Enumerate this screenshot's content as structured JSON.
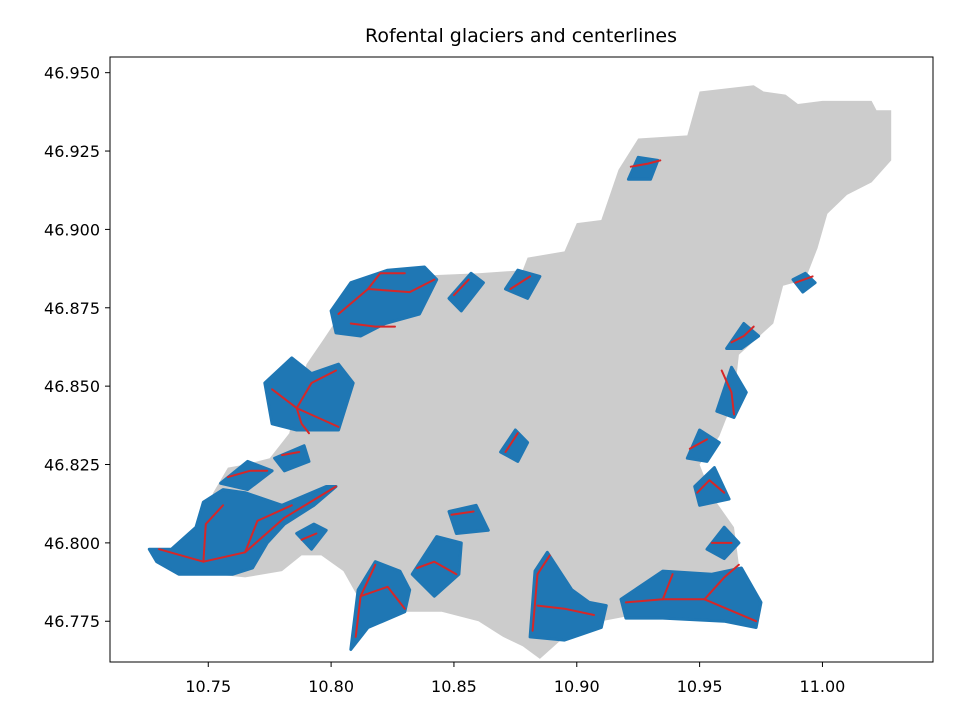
{
  "title": "Rofental glaciers and centerlines",
  "colors": {
    "catchment": "#cccccc",
    "glacier": "#1f77b4",
    "centerline": "#d62728",
    "axes": "#000000",
    "background": "#ffffff"
  },
  "axes": {
    "xlim": [
      10.71,
      11.045
    ],
    "ylim": [
      46.762,
      46.955
    ],
    "x_ticks": [
      10.75,
      10.8,
      10.85,
      10.9,
      10.95,
      11.0
    ],
    "x_tick_labels": [
      "10.75",
      "10.80",
      "10.85",
      "10.90",
      "10.95",
      "11.00"
    ],
    "y_ticks": [
      46.775,
      46.8,
      46.825,
      46.85,
      46.875,
      46.9,
      46.925,
      46.95
    ],
    "y_tick_labels": [
      "46.775",
      "46.800",
      "46.825",
      "46.850",
      "46.875",
      "46.900",
      "46.925",
      "46.950"
    ]
  },
  "map_layers": {
    "catchment_outline": [
      [
        10.95,
        46.944
      ],
      [
        10.972,
        46.946
      ],
      [
        10.976,
        46.944
      ],
      [
        10.985,
        46.943
      ],
      [
        10.99,
        46.94
      ],
      [
        11.0,
        46.941
      ],
      [
        11.02,
        46.941
      ],
      [
        11.022,
        46.938
      ],
      [
        11.028,
        46.938
      ],
      [
        11.028,
        46.922
      ],
      [
        11.02,
        46.915
      ],
      [
        11.01,
        46.911
      ],
      [
        11.002,
        46.905
      ],
      [
        10.998,
        46.894
      ],
      [
        10.993,
        46.884
      ],
      [
        10.984,
        46.882
      ],
      [
        10.98,
        46.87
      ],
      [
        10.966,
        46.86
      ],
      [
        10.964,
        46.846
      ],
      [
        10.958,
        46.834
      ],
      [
        10.95,
        46.825
      ],
      [
        10.955,
        46.815
      ],
      [
        10.964,
        46.805
      ],
      [
        10.966,
        46.793
      ],
      [
        10.955,
        46.784
      ],
      [
        10.945,
        46.782
      ],
      [
        10.93,
        46.778
      ],
      [
        10.91,
        46.775
      ],
      [
        10.895,
        46.77
      ],
      [
        10.885,
        46.763
      ],
      [
        10.878,
        46.767
      ],
      [
        10.87,
        46.77
      ],
      [
        10.86,
        46.775
      ],
      [
        10.845,
        46.778
      ],
      [
        10.83,
        46.778
      ],
      [
        10.818,
        46.775
      ],
      [
        10.81,
        46.784
      ],
      [
        10.805,
        46.791
      ],
      [
        10.796,
        46.796
      ],
      [
        10.788,
        46.796
      ],
      [
        10.78,
        46.791
      ],
      [
        10.765,
        46.789
      ],
      [
        10.752,
        46.79
      ],
      [
        10.748,
        46.797
      ],
      [
        10.748,
        46.806
      ],
      [
        10.752,
        46.816
      ],
      [
        10.758,
        46.824
      ],
      [
        10.765,
        46.825
      ],
      [
        10.775,
        46.827
      ],
      [
        10.783,
        46.835
      ],
      [
        10.785,
        46.843
      ],
      [
        10.79,
        46.857
      ],
      [
        10.797,
        46.865
      ],
      [
        10.808,
        46.878
      ],
      [
        10.83,
        46.885
      ],
      [
        10.86,
        46.886
      ],
      [
        10.878,
        46.887
      ],
      [
        10.88,
        46.891
      ],
      [
        10.895,
        46.893
      ],
      [
        10.9,
        46.902
      ],
      [
        10.91,
        46.903
      ],
      [
        10.917,
        46.919
      ],
      [
        10.925,
        46.929
      ],
      [
        10.945,
        46.93
      ],
      [
        10.95,
        46.944
      ]
    ],
    "glaciers": [
      [
        [
          10.726,
          46.798
        ],
        [
          10.735,
          46.798
        ],
        [
          10.745,
          46.805
        ],
        [
          10.748,
          46.813
        ],
        [
          10.756,
          46.817
        ],
        [
          10.765,
          46.816
        ],
        [
          10.78,
          46.812
        ],
        [
          10.798,
          46.818
        ],
        [
          10.802,
          46.818
        ],
        [
          10.793,
          46.812
        ],
        [
          10.781,
          46.806
        ],
        [
          10.774,
          46.8
        ],
        [
          10.768,
          46.792
        ],
        [
          10.76,
          46.79
        ],
        [
          10.748,
          46.79
        ],
        [
          10.738,
          46.79
        ],
        [
          10.729,
          46.794
        ]
      ],
      [
        [
          10.786,
          46.803
        ],
        [
          10.793,
          46.806
        ],
        [
          10.798,
          46.804
        ],
        [
          10.792,
          46.798
        ]
      ],
      [
        [
          10.755,
          46.819
        ],
        [
          10.766,
          46.826
        ],
        [
          10.776,
          46.823
        ],
        [
          10.766,
          46.817
        ]
      ],
      [
        [
          10.808,
          46.766
        ],
        [
          10.811,
          46.785
        ],
        [
          10.818,
          46.794
        ],
        [
          10.828,
          46.791
        ],
        [
          10.832,
          46.785
        ],
        [
          10.83,
          46.778
        ],
        [
          10.815,
          46.773
        ]
      ],
      [
        [
          10.833,
          46.79
        ],
        [
          10.843,
          46.802
        ],
        [
          10.853,
          46.8
        ],
        [
          10.852,
          46.79
        ],
        [
          10.842,
          46.783
        ]
      ],
      [
        [
          10.848,
          46.81
        ],
        [
          10.859,
          46.812
        ],
        [
          10.864,
          46.804
        ],
        [
          10.851,
          46.803
        ]
      ],
      [
        [
          10.881,
          46.77
        ],
        [
          10.883,
          46.791
        ],
        [
          10.888,
          46.797
        ],
        [
          10.898,
          46.785
        ],
        [
          10.905,
          46.781
        ],
        [
          10.912,
          46.78
        ],
        [
          10.91,
          46.773
        ],
        [
          10.895,
          46.769
        ]
      ],
      [
        [
          10.918,
          46.782
        ],
        [
          10.935,
          46.791
        ],
        [
          10.955,
          46.79
        ],
        [
          10.967,
          46.792
        ],
        [
          10.975,
          46.781
        ],
        [
          10.973,
          46.773
        ],
        [
          10.96,
          46.775
        ],
        [
          10.935,
          46.776
        ],
        [
          10.92,
          46.776
        ]
      ],
      [
        [
          10.773,
          46.851
        ],
        [
          10.776,
          46.838
        ],
        [
          10.786,
          46.836
        ],
        [
          10.803,
          46.836
        ],
        [
          10.809,
          46.851
        ],
        [
          10.803,
          46.857
        ],
        [
          10.792,
          46.854
        ],
        [
          10.784,
          46.859
        ]
      ],
      [
        [
          10.777,
          46.827
        ],
        [
          10.789,
          46.831
        ],
        [
          10.791,
          46.826
        ],
        [
          10.781,
          46.823
        ]
      ],
      [
        [
          10.8,
          46.874
        ],
        [
          10.808,
          46.883
        ],
        [
          10.823,
          46.887
        ],
        [
          10.838,
          46.888
        ],
        [
          10.843,
          46.884
        ],
        [
          10.836,
          46.873
        ],
        [
          10.822,
          46.87
        ],
        [
          10.812,
          46.866
        ],
        [
          10.802,
          46.867
        ]
      ],
      [
        [
          10.848,
          46.878
        ],
        [
          10.857,
          46.886
        ],
        [
          10.862,
          46.883
        ],
        [
          10.853,
          46.874
        ]
      ],
      [
        [
          10.871,
          46.881
        ],
        [
          10.876,
          46.887
        ],
        [
          10.885,
          46.885
        ],
        [
          10.88,
          46.878
        ]
      ],
      [
        [
          10.869,
          46.829
        ],
        [
          10.875,
          46.836
        ],
        [
          10.88,
          46.832
        ],
        [
          10.876,
          46.826
        ]
      ],
      [
        [
          10.921,
          46.916
        ],
        [
          10.925,
          46.923
        ],
        [
          10.933,
          46.922
        ],
        [
          10.93,
          46.916
        ]
      ],
      [
        [
          10.961,
          46.862
        ],
        [
          10.968,
          46.87
        ],
        [
          10.974,
          46.866
        ],
        [
          10.967,
          46.862
        ]
      ],
      [
        [
          10.957,
          46.842
        ],
        [
          10.963,
          46.856
        ],
        [
          10.969,
          46.848
        ],
        [
          10.964,
          46.84
        ]
      ],
      [
        [
          10.948,
          46.818
        ],
        [
          10.956,
          46.824
        ],
        [
          10.962,
          46.814
        ],
        [
          10.95,
          46.812
        ]
      ],
      [
        [
          10.953,
          46.798
        ],
        [
          10.96,
          46.805
        ],
        [
          10.966,
          46.8
        ],
        [
          10.96,
          46.795
        ]
      ],
      [
        [
          10.945,
          46.827
        ],
        [
          10.95,
          46.836
        ],
        [
          10.958,
          46.832
        ],
        [
          10.953,
          46.826
        ]
      ],
      [
        [
          10.988,
          46.884
        ],
        [
          10.993,
          46.886
        ],
        [
          10.997,
          46.883
        ],
        [
          10.992,
          46.88
        ]
      ]
    ],
    "centerlines": [
      [
        [
          10.73,
          46.798
        ],
        [
          10.748,
          46.794
        ],
        [
          10.765,
          46.797
        ],
        [
          10.781,
          46.808
        ],
        [
          10.802,
          46.818
        ]
      ],
      [
        [
          10.748,
          46.794
        ],
        [
          10.749,
          46.806
        ],
        [
          10.756,
          46.812
        ]
      ],
      [
        [
          10.765,
          46.797
        ],
        [
          10.77,
          46.807
        ],
        [
          10.784,
          46.812
        ]
      ],
      [
        [
          10.758,
          46.821
        ],
        [
          10.767,
          46.823
        ],
        [
          10.774,
          46.823
        ]
      ],
      [
        [
          10.788,
          46.801
        ],
        [
          10.794,
          46.803
        ]
      ],
      [
        [
          10.81,
          46.77
        ],
        [
          10.812,
          46.783
        ],
        [
          10.818,
          46.793
        ]
      ],
      [
        [
          10.812,
          46.783
        ],
        [
          10.823,
          46.786
        ],
        [
          10.83,
          46.779
        ]
      ],
      [
        [
          10.835,
          46.792
        ],
        [
          10.842,
          46.794
        ],
        [
          10.851,
          46.79
        ]
      ],
      [
        [
          10.849,
          46.809
        ],
        [
          10.858,
          46.81
        ]
      ],
      [
        [
          10.882,
          46.772
        ],
        [
          10.884,
          46.79
        ],
        [
          10.889,
          46.796
        ]
      ],
      [
        [
          10.884,
          46.78
        ],
        [
          10.895,
          46.779
        ],
        [
          10.907,
          46.777
        ]
      ],
      [
        [
          10.92,
          46.781
        ],
        [
          10.935,
          46.782
        ],
        [
          10.952,
          46.782
        ],
        [
          10.973,
          46.775
        ]
      ],
      [
        [
          10.935,
          46.782
        ],
        [
          10.939,
          46.79
        ]
      ],
      [
        [
          10.952,
          46.782
        ],
        [
          10.96,
          46.789
        ],
        [
          10.966,
          46.793
        ]
      ],
      [
        [
          10.776,
          46.849
        ],
        [
          10.786,
          46.843
        ],
        [
          10.803,
          46.837
        ]
      ],
      [
        [
          10.786,
          46.843
        ],
        [
          10.792,
          46.851
        ],
        [
          10.802,
          46.855
        ]
      ],
      [
        [
          10.786,
          46.843
        ],
        [
          10.788,
          46.838
        ],
        [
          10.791,
          46.835
        ]
      ],
      [
        [
          10.78,
          46.828
        ],
        [
          10.787,
          46.829
        ]
      ],
      [
        [
          10.803,
          46.873
        ],
        [
          10.815,
          46.881
        ],
        [
          10.832,
          46.88
        ],
        [
          10.842,
          46.884
        ]
      ],
      [
        [
          10.815,
          46.881
        ],
        [
          10.82,
          46.886
        ],
        [
          10.83,
          46.886
        ]
      ],
      [
        [
          10.808,
          46.87
        ],
        [
          10.818,
          46.869
        ],
        [
          10.826,
          46.869
        ]
      ],
      [
        [
          10.85,
          46.879
        ],
        [
          10.856,
          46.884
        ]
      ],
      [
        [
          10.873,
          46.881
        ],
        [
          10.881,
          46.885
        ]
      ],
      [
        [
          10.871,
          46.829
        ],
        [
          10.876,
          46.835
        ]
      ],
      [
        [
          10.922,
          46.92
        ],
        [
          10.929,
          46.921
        ],
        [
          10.934,
          46.922
        ]
      ],
      [
        [
          10.963,
          46.864
        ],
        [
          10.968,
          46.866
        ],
        [
          10.972,
          46.869
        ]
      ],
      [
        [
          10.959,
          46.855
        ],
        [
          10.963,
          46.848
        ],
        [
          10.964,
          46.841
        ]
      ],
      [
        [
          10.949,
          46.816
        ],
        [
          10.954,
          46.82
        ],
        [
          10.96,
          46.816
        ]
      ],
      [
        [
          10.955,
          46.8
        ],
        [
          10.963,
          46.8
        ]
      ],
      [
        [
          10.946,
          46.83
        ],
        [
          10.953,
          46.833
        ]
      ],
      [
        [
          10.989,
          46.883
        ],
        [
          10.996,
          46.885
        ]
      ]
    ]
  }
}
